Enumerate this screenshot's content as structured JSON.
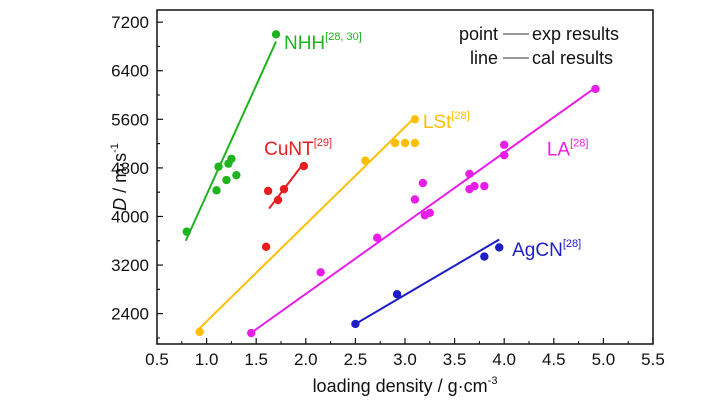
{
  "chart_data": {
    "type": "scatter",
    "title": "",
    "xlabel": "loading density / g·cm",
    "xlabel_sup": "-3",
    "ylabel_italic": "D",
    "ylabel_rest": " / m·s",
    "ylabel_sup": "-1",
    "xlim": [
      0.5,
      5.5
    ],
    "ylim": [
      1900,
      7400
    ],
    "xticks": [
      0.5,
      1.0,
      1.5,
      2.0,
      2.5,
      3.0,
      3.5,
      4.0,
      4.5,
      5.0,
      5.5
    ],
    "xtick_labels": [
      "0.5",
      "1.0",
      "1.5",
      "2.0",
      "2.5",
      "3.0",
      "3.5",
      "4.0",
      "4.5",
      "5.0",
      "5.5"
    ],
    "yticks": [
      2400,
      3200,
      4000,
      4800,
      5600,
      6400,
      7200
    ],
    "ytick_labels": [
      "2400",
      "3200",
      "4000",
      "4800",
      "5600",
      "6400",
      "7200"
    ],
    "grid": false,
    "legend": {
      "placement": "top-right",
      "items": [
        {
          "label": "point",
          "desc": "exp results"
        },
        {
          "label": "line",
          "desc": "cal results"
        }
      ]
    },
    "series": [
      {
        "name": "NHH",
        "ref": "[28, 30]",
        "color": "#1fb31f",
        "points": [
          [
            0.8,
            3750
          ],
          [
            1.1,
            4430
          ],
          [
            1.12,
            4820
          ],
          [
            1.2,
            4600
          ],
          [
            1.22,
            4870
          ],
          [
            1.25,
            4950
          ],
          [
            1.3,
            4680
          ],
          [
            1.7,
            7000
          ]
        ],
        "line": [
          [
            0.79,
            3600
          ],
          [
            1.7,
            6880
          ]
        ],
        "label_pos": [
          1.78,
          6760
        ]
      },
      {
        "name": "CuNT",
        "ref": "[29]",
        "color": "#e81d1d",
        "points": [
          [
            1.6,
            3500
          ],
          [
            1.62,
            4420
          ],
          [
            1.72,
            4270
          ],
          [
            1.78,
            4450
          ],
          [
            1.98,
            4830
          ]
        ],
        "line": [
          [
            1.63,
            4130
          ],
          [
            1.98,
            4880
          ]
        ],
        "label_pos": [
          1.58,
          5010
        ]
      },
      {
        "name": "LSt",
        "ref": "[28]",
        "color": "#ffbf00",
        "points": [
          [
            0.93,
            2100
          ],
          [
            2.6,
            4920
          ],
          [
            2.9,
            5210
          ],
          [
            3.0,
            5210
          ],
          [
            3.1,
            5210
          ],
          [
            3.1,
            5600
          ]
        ],
        "line": [
          [
            0.93,
            2160
          ],
          [
            3.08,
            5600
          ]
        ],
        "label_pos": [
          3.18,
          5460
        ]
      },
      {
        "name": "LA",
        "ref": "[28]",
        "color": "#e81de8",
        "points": [
          [
            1.45,
            2080
          ],
          [
            2.15,
            3080
          ],
          [
            2.72,
            3650
          ],
          [
            3.1,
            4280
          ],
          [
            3.18,
            4550
          ],
          [
            3.2,
            4020
          ],
          [
            3.25,
            4060
          ],
          [
            3.65,
            4700
          ],
          [
            3.65,
            4450
          ],
          [
            3.7,
            4500
          ],
          [
            3.8,
            4500
          ],
          [
            4.0,
            5180
          ],
          [
            4.0,
            5010
          ],
          [
            4.92,
            6100
          ]
        ],
        "line": [
          [
            1.42,
            2050
          ],
          [
            4.9,
            6100
          ]
        ],
        "label_pos": [
          4.43,
          5000
        ]
      },
      {
        "name": "AgCN",
        "ref": "[28]",
        "color": "#1d1dc8",
        "points": [
          [
            2.5,
            2230
          ],
          [
            2.92,
            2720
          ],
          [
            3.8,
            3340
          ],
          [
            3.95,
            3490
          ]
        ],
        "line": [
          [
            2.5,
            2230
          ],
          [
            3.95,
            3620
          ]
        ],
        "label_pos": [
          4.08,
          3350
        ]
      }
    ]
  }
}
